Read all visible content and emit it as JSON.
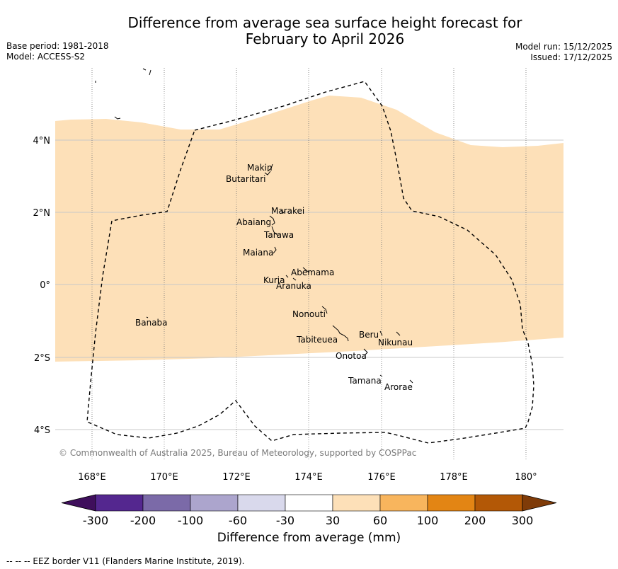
{
  "title": {
    "line1": "Difference from average sea surface height forecast for",
    "line2": "February to April 2026"
  },
  "meta": {
    "base_period": "Base period: 1981-2018",
    "model": "Model: ACCESS-S2",
    "model_run": "Model run: 15/12/2025",
    "issued": "Issued: 17/12/2025"
  },
  "map": {
    "lon_ticks": [
      "168°E",
      "170°E",
      "172°E",
      "174°E",
      "176°E",
      "178°E",
      "180°"
    ],
    "lat_ticks": [
      "4°N",
      "2°N",
      "0°",
      "2°S",
      "4°S"
    ],
    "fill_color": "#fde0b8",
    "copyright": "© Commonwealth of Australia 2025, Bureau of Meteorology, supported by COSPPac",
    "islands": [
      {
        "name": "Makin",
        "label": "Makin"
      },
      {
        "name": "Butaritari",
        "label": "Butaritari"
      },
      {
        "name": "Marakei",
        "label": "Marakei"
      },
      {
        "name": "Abaiang",
        "label": "Abaiang"
      },
      {
        "name": "Tarawa",
        "label": "Tarawa"
      },
      {
        "name": "Maiana",
        "label": "Maiana"
      },
      {
        "name": "Abemama",
        "label": "Abemama"
      },
      {
        "name": "Kuria",
        "label": "Kuria"
      },
      {
        "name": "Aranuka",
        "label": "Aranuka"
      },
      {
        "name": "Nonouti",
        "label": "Nonouti"
      },
      {
        "name": "Banaba",
        "label": "Banaba"
      },
      {
        "name": "Tabiteuea",
        "label": "Tabiteuea"
      },
      {
        "name": "Beru",
        "label": "Beru"
      },
      {
        "name": "Nikunau",
        "label": "Nikunau"
      },
      {
        "name": "Onotoa",
        "label": "Onotoa"
      },
      {
        "name": "Tamana",
        "label": "Tamana"
      },
      {
        "name": "Arorae",
        "label": "Arorae"
      }
    ]
  },
  "colorbar": {
    "title": "Difference from average (mm)",
    "labels": [
      "-300",
      "-200",
      "-100",
      "-60",
      "-30",
      "30",
      "60",
      "100",
      "200",
      "300"
    ],
    "colors": [
      "#3f0f5c",
      "#54278f",
      "#7b6aa8",
      "#aca5cd",
      "#d9d9ec",
      "#ffffff",
      "#fde0b8",
      "#f8b55d",
      "#e38514",
      "#b35806",
      "#7f3b08"
    ]
  },
  "footer": "--  --  -- EEZ border V11 (Flanders Marine Institute, 2019)."
}
